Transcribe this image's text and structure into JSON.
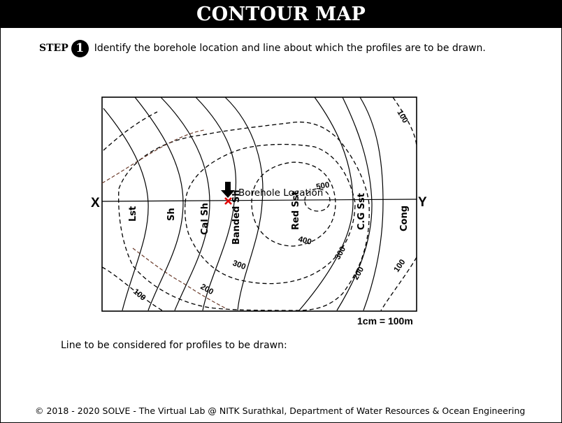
{
  "header": {
    "title": "CONTOUR MAP"
  },
  "step": {
    "label": "STEP",
    "number": "1",
    "text": "Identify the borehole location and line about which the profiles are to be drawn."
  },
  "map": {
    "endpoint_left": "X",
    "endpoint_right": "Y",
    "borehole_label": "Borehole Location",
    "scale_text": "1cm = 100m",
    "formations": [
      "Lst",
      "Sh",
      "Cal Sh",
      "Banded Sh",
      "Red Sst",
      "C.G Sst",
      "Cong"
    ],
    "contour_labels": [
      "100",
      "200",
      "300",
      "400",
      "500",
      "300",
      "200",
      "100",
      "100"
    ]
  },
  "instructions": {
    "profile_line_text": "Line to be considered for profiles to be drawn:"
  },
  "footer": {
    "text": "© 2018 - 2020 SOLVE - The Virtual Lab @ NITK Surathkal, Department of Water Resources & Ocean Engineering"
  }
}
